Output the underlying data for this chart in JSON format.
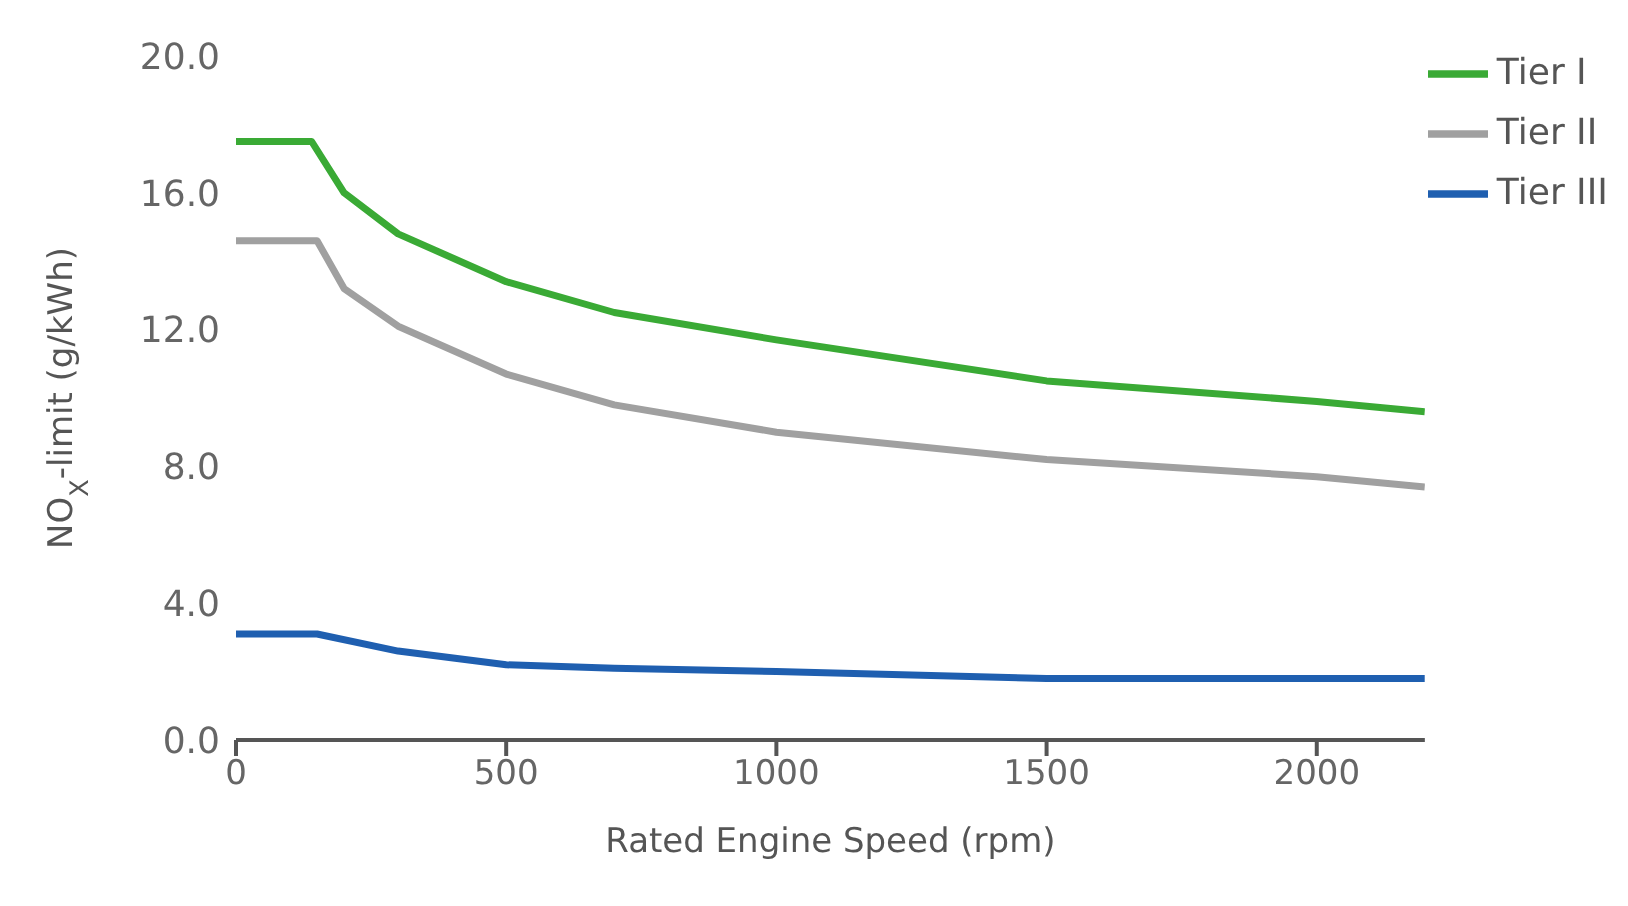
{
  "chart_data": {
    "type": "line",
    "xlabel": "Rated Engine Speed (rpm)",
    "ylabel": "NO$_{X}$-limit (g/kWh)",
    "xlim": [
      0,
      2200
    ],
    "xticks": [
      0,
      500,
      1000,
      1500,
      2000
    ],
    "ylim": [
      0,
      20
    ],
    "yticks": [
      {
        "value": 0,
        "label": "0.0"
      },
      {
        "value": 4,
        "label": "4.0"
      },
      {
        "value": 8,
        "label": "8.0"
      },
      {
        "value": 12,
        "label": "12.0"
      },
      {
        "value": 16,
        "label": "16.0"
      },
      {
        "value": 20,
        "label": "20.0"
      }
    ],
    "grid": false,
    "legend": "top right",
    "marker": "none",
    "line_style": "solid",
    "series": [
      {
        "name": "Tier I",
        "color": "#3aaa35",
        "x": [
          0,
          140,
          200,
          300,
          500,
          700,
          1000,
          1500,
          2000,
          2200
        ],
        "values": [
          17.5,
          17.5,
          16.0,
          14.8,
          13.4,
          12.5,
          11.7,
          10.5,
          9.9,
          9.6
        ]
      },
      {
        "name": "Tier II",
        "color": "#a0a0a0",
        "x": [
          0,
          150,
          200,
          300,
          500,
          700,
          1000,
          1500,
          2000,
          2200
        ],
        "values": [
          14.6,
          14.6,
          13.2,
          12.1,
          10.7,
          9.8,
          9.0,
          8.2,
          7.7,
          7.4
        ]
      },
      {
        "name": "Tier III",
        "color": "#1f5fb0",
        "x": [
          0,
          150,
          300,
          500,
          700,
          1000,
          1500,
          2000,
          2200
        ],
        "values": [
          3.1,
          3.1,
          2.6,
          2.2,
          2.1,
          2.0,
          1.8,
          1.8,
          1.8
        ]
      }
    ]
  }
}
